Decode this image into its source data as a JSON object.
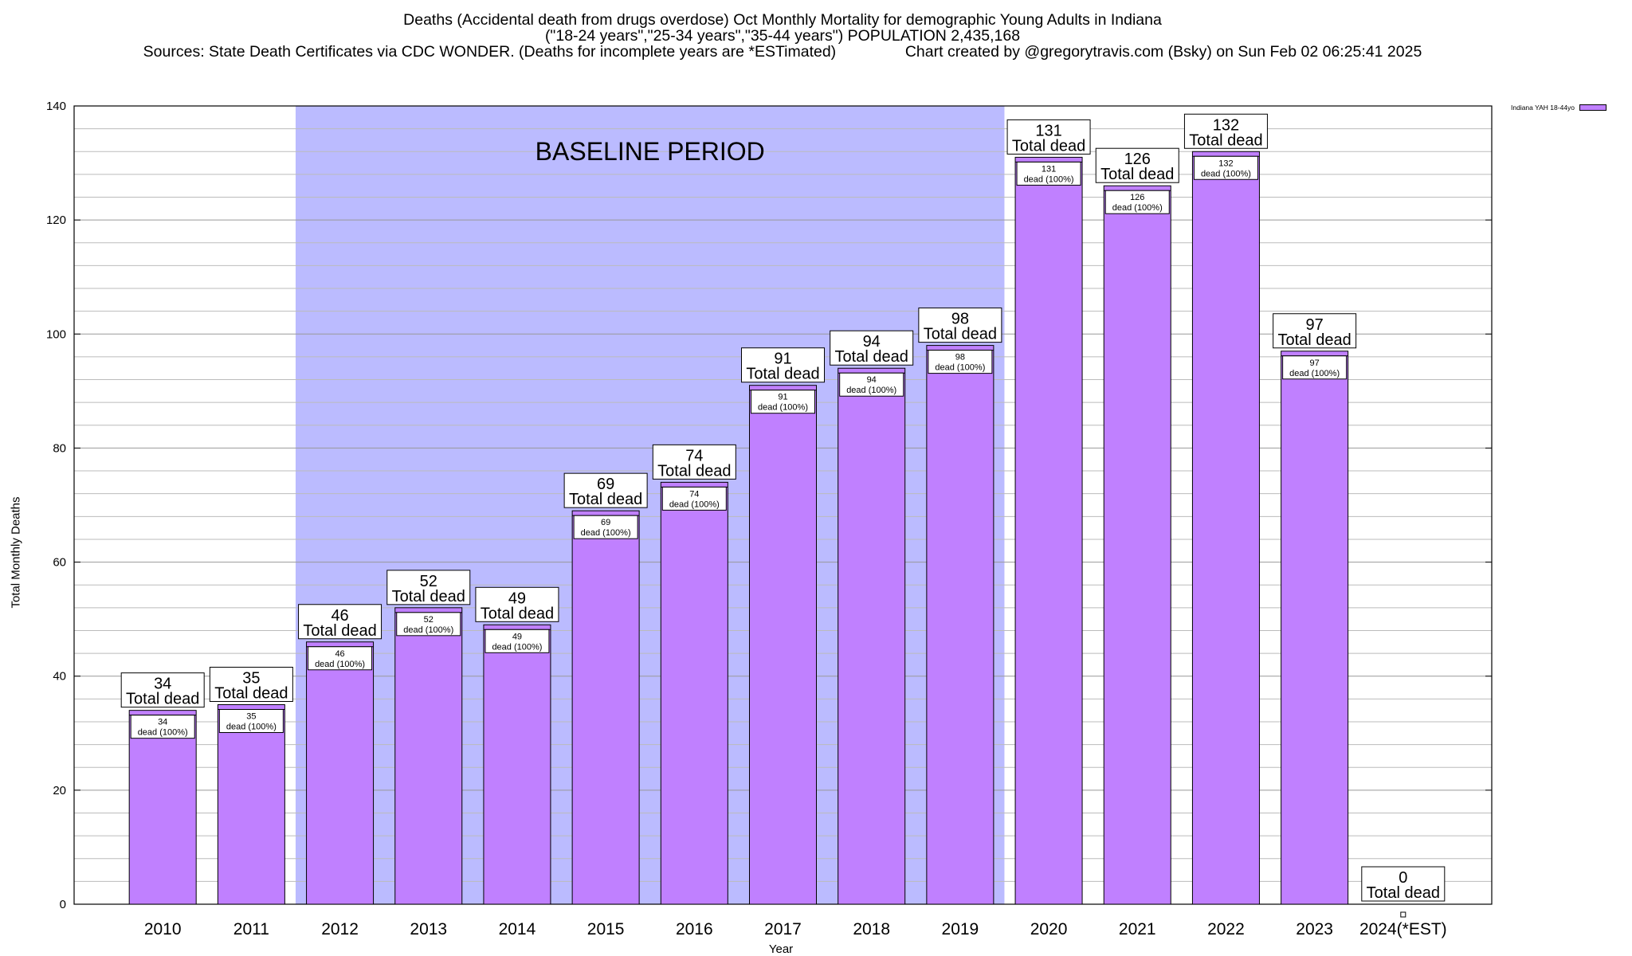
{
  "chart_data": {
    "type": "bar",
    "title_lines": [
      "Deaths (Accidental death from drugs overdose) Oct Monthly Mortality for demographic Young Adults in Indiana",
      "(\"18-24 years\",\"25-34 years\",\"35-44 years\") POPULATION 2,435,168",
      "Sources: State Death Certificates via CDC WONDER. (Deaths for incomplete years are *ESTimated)                Chart created by @gregorytravis.com (Bsky) on Sun Feb 02 06:25:41 2025"
    ],
    "xlabel": "Year",
    "ylabel": "Total Monthly Deaths",
    "ylim": [
      0,
      140
    ],
    "yticks": [
      0,
      20,
      40,
      60,
      80,
      100,
      120,
      140
    ],
    "grid": true,
    "legend_position": "top-right",
    "categories": [
      "2010",
      "2011",
      "2012",
      "2013",
      "2014",
      "2015",
      "2016",
      "2017",
      "2018",
      "2019",
      "2020",
      "2021",
      "2022",
      "2023",
      "2024(*EST)"
    ],
    "series": [
      {
        "name": "Indiana YAH 18-44yo",
        "values": [
          34,
          35,
          46,
          52,
          49,
          69,
          74,
          91,
          94,
          98,
          131,
          126,
          132,
          97,
          0
        ]
      }
    ],
    "total_label": "Total dead",
    "inner_label": "dead (100%)",
    "baseline": {
      "label": "BASELINE PERIOD",
      "from": "2012",
      "to": "2019"
    },
    "colors": {
      "bar": "#c080ff",
      "baseline": "#bbbbff",
      "grid": "#bbbbbb"
    }
  }
}
